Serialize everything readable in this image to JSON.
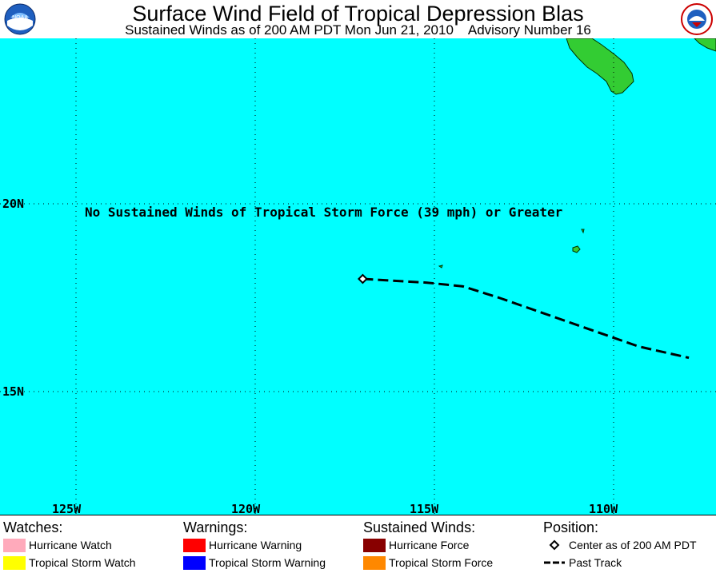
{
  "header": {
    "title": "Surface Wind Field of Tropical Depression Blas",
    "subtitle": "Sustained Winds as of 200 AM PDT Mon Jun 21, 2010    Advisory Number 16",
    "left_logo": "NOAA",
    "right_logo": "NATIONAL WEATHER SERVICE"
  },
  "map": {
    "latitude_labels": [
      "20N",
      "15N"
    ],
    "longitude_labels": [
      "125W",
      "120W",
      "115W",
      "110W"
    ],
    "note": "No Sustained Winds of Tropical Storm Force (39 mph) or Greater",
    "colors": {
      "ocean": "#00ffff",
      "land": "#33cc33",
      "grid": "#000000",
      "track": "#000000"
    },
    "storm_center": {
      "lat": 18.0,
      "lon": -117.0
    },
    "past_track": [
      {
        "lat": 18.0,
        "lon": -117.0
      },
      {
        "lat": 17.9,
        "lon": -115.2
      },
      {
        "lat": 17.8,
        "lon": -114.2
      },
      {
        "lat": 17.5,
        "lon": -113.2
      },
      {
        "lat": 17.1,
        "lon": -112.0
      },
      {
        "lat": 16.6,
        "lon": -110.5
      },
      {
        "lat": 16.2,
        "lon": -109.3
      },
      {
        "lat": 15.9,
        "lon": -107.9
      }
    ]
  },
  "legend": {
    "watches": {
      "heading": "Watches:",
      "items": [
        {
          "label": "Hurricane Watch",
          "color": "#ffaabb"
        },
        {
          "label": "Tropical Storm Watch",
          "color": "#ffff00"
        }
      ]
    },
    "warnings": {
      "heading": "Warnings:",
      "items": [
        {
          "label": "Hurricane Warning",
          "color": "#ff0000"
        },
        {
          "label": "Tropical Storm Warning",
          "color": "#0000ff"
        }
      ]
    },
    "sustained_winds": {
      "heading": "Sustained Winds:",
      "items": [
        {
          "label": "Hurricane Force",
          "color": "#880000"
        },
        {
          "label": "Tropical Storm Force",
          "color": "#ff8800"
        }
      ]
    },
    "position": {
      "heading": "Position:",
      "items": [
        {
          "label": "Center as of 200 AM PDT",
          "icon": "diamond-icon"
        },
        {
          "label": "Past Track",
          "icon": "dashed-line-icon"
        }
      ]
    }
  }
}
